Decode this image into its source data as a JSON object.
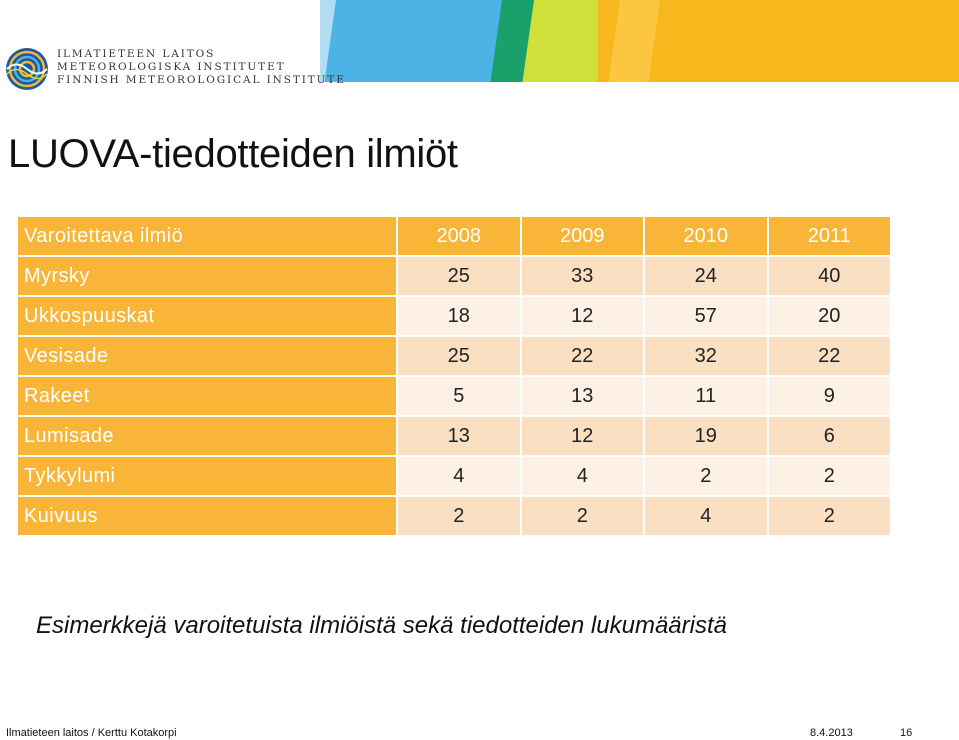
{
  "header": {
    "org_lines": [
      "ILMATIETEEN LAITOS",
      "METEOROLOGISKA INSTITUTET",
      "FINNISH METEOROLOGICAL INSTITUTE"
    ]
  },
  "slide": {
    "title": "LUOVA-tiedotteiden ilmiöt",
    "caption": "Esimerkkejä varoitetuista ilmiöistä sekä tiedotteiden lukumääristä"
  },
  "table": {
    "header": [
      "Varoitettava ilmiö",
      "2008",
      "2009",
      "2010",
      "2011"
    ],
    "rows": [
      [
        "Myrsky",
        "25",
        "33",
        "24",
        "40"
      ],
      [
        "Ukkospuuskat",
        "18",
        "12",
        "57",
        "20"
      ],
      [
        "Vesisade",
        "25",
        "22",
        "32",
        "22"
      ],
      [
        "Rakeet",
        "5",
        "13",
        "11",
        "9"
      ],
      [
        "Lumisade",
        "13",
        "12",
        "19",
        "6"
      ],
      [
        "Tykkylumi",
        "4",
        "4",
        "2",
        "2"
      ],
      [
        "Kuivuus",
        "2",
        "2",
        "4",
        "2"
      ]
    ]
  },
  "footer": {
    "author": "Ilmatieteen laitos / Kerttu Kotakorpi",
    "date": "8.4.2013",
    "page": "16"
  },
  "colors": {
    "accent_orange": "#f9b538",
    "row_light": "#fdf0e4",
    "row_dark": "#fbdfc3"
  }
}
